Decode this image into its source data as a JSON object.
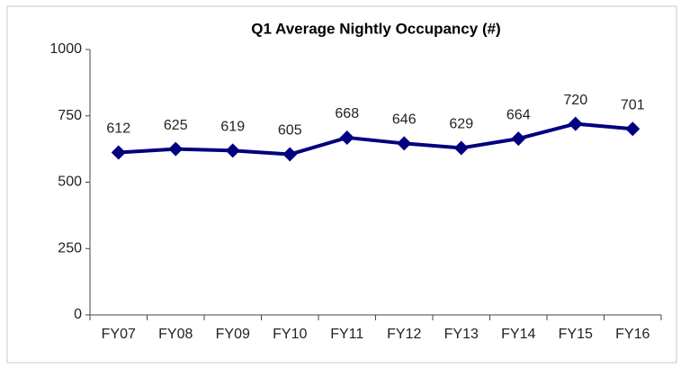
{
  "chart_data": {
    "type": "line",
    "title": "Q1 Average Nightly Occupancy (#)",
    "categories": [
      "FY07",
      "FY08",
      "FY09",
      "FY10",
      "FY11",
      "FY12",
      "FY13",
      "FY14",
      "FY15",
      "FY16"
    ],
    "series": [
      {
        "name": "Q1 Average Nightly Occupancy",
        "color": "#000080",
        "values": [
          612,
          625,
          619,
          605,
          668,
          646,
          629,
          664,
          720,
          701
        ]
      }
    ],
    "ylim": [
      0,
      1000
    ],
    "yticks": [
      0,
      250,
      500,
      750,
      1000
    ],
    "grid": false,
    "legend": false
  }
}
